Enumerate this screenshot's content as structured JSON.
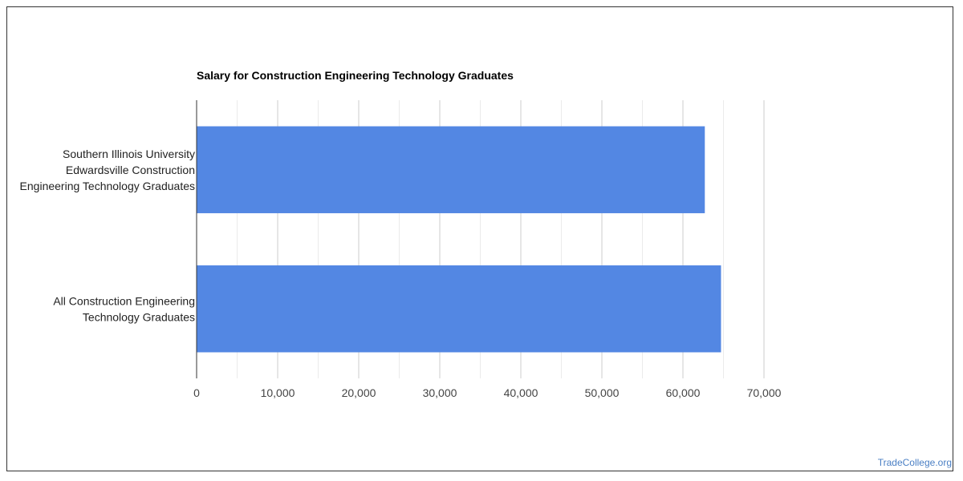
{
  "chart_data": {
    "type": "bar",
    "orientation": "horizontal",
    "title": "Salary for Construction Engineering Technology Graduates",
    "categories": [
      [
        "Southern Illinois University",
        "Edwardsville Construction",
        "Engineering Technology Graduates"
      ],
      [
        "All Construction Engineering",
        "Technology Graduates"
      ]
    ],
    "values": [
      62700,
      64700
    ],
    "xlim": [
      0,
      70000
    ],
    "xticks": [
      "0",
      "10,000",
      "20,000",
      "30,000",
      "40,000",
      "50,000",
      "60,000",
      "70,000"
    ],
    "grid": true,
    "legend": "none",
    "bar_color": "#5387e3"
  },
  "watermark": "TradeCollege.org"
}
